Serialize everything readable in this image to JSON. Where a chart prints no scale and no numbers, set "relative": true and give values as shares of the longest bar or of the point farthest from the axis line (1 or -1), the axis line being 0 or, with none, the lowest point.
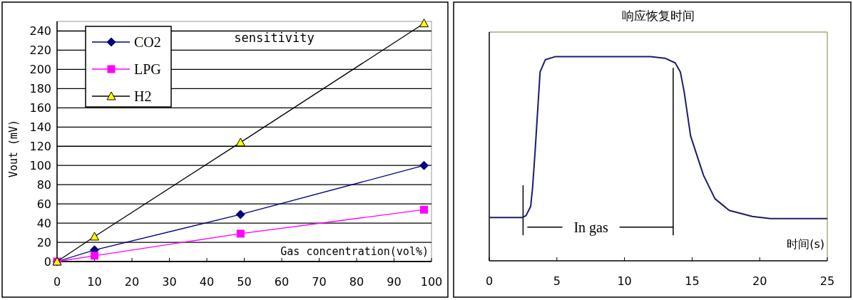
{
  "chart_data": [
    {
      "type": "line",
      "title": "sensitivity",
      "xlabel": "Gas concentration(vol%)",
      "ylabel": "Vout (mV)",
      "x": [
        0,
        10,
        49,
        98
      ],
      "series": [
        {
          "name": "CO2",
          "color": "#000080",
          "marker": "diamond",
          "values": [
            0,
            12,
            49,
            100
          ]
        },
        {
          "name": "LPG",
          "color": "#ff00ff",
          "marker": "square",
          "values": [
            0,
            6,
            29,
            54
          ]
        },
        {
          "name": "H2",
          "color": "#000000",
          "marker": "triangle",
          "values": [
            0,
            26,
            124,
            248
          ]
        }
      ],
      "xlim": [
        0,
        100
      ],
      "ylim": [
        0,
        250
      ],
      "xticks": [
        0,
        10,
        20,
        30,
        40,
        50,
        60,
        70,
        80,
        90,
        100
      ],
      "yticks": [
        0,
        20,
        40,
        60,
        80,
        100,
        120,
        140,
        160,
        180,
        200,
        220,
        240
      ],
      "grid": "y",
      "legend": "top left"
    },
    {
      "type": "line",
      "relative": true,
      "title": "响应恢复时间",
      "xlabel": "时间(s)",
      "marker": "none",
      "x": [
        0,
        2.43,
        2.72,
        3.06,
        3.2,
        3.39,
        3.57,
        3.76,
        4.15,
        4.9,
        11.94,
        12.99,
        13.75,
        14.13,
        14.41,
        14.89,
        15.84,
        16.69,
        17.74,
        19.45,
        20.78,
        25
      ],
      "series": [
        {
          "color": "#1c1c6c",
          "values": [
            0.212,
            0.212,
            0.221,
            0.266,
            0.355,
            0.535,
            0.726,
            0.925,
            0.985,
            1,
            1,
            0.992,
            0.969,
            0.925,
            0.829,
            0.611,
            0.419,
            0.304,
            0.247,
            0.217,
            0.207,
            0.207
          ]
        }
      ],
      "xlim": [
        0,
        25
      ],
      "xticks": [
        0,
        5,
        10,
        15,
        20,
        25
      ],
      "ref_lines": [
        {
          "axis": "x",
          "value": 2.5
        },
        {
          "axis": "x",
          "value": 13.6
        }
      ],
      "annotations": [
        "In gas"
      ]
    }
  ]
}
